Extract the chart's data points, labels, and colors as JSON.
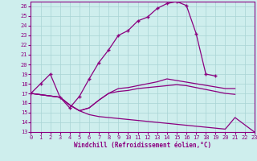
{
  "xlabel": "Windchill (Refroidissement éolien,°C)",
  "bg_color": "#ceeeed",
  "grid_color": "#a8d4d4",
  "line_color": "#8b0080",
  "xlim": [
    0,
    23
  ],
  "ylim": [
    13,
    26.5
  ],
  "xticks": [
    0,
    1,
    2,
    3,
    4,
    5,
    6,
    7,
    8,
    9,
    10,
    11,
    12,
    13,
    14,
    15,
    16,
    17,
    18,
    19,
    20,
    21,
    22,
    23
  ],
  "yticks": [
    13,
    14,
    15,
    16,
    17,
    18,
    19,
    20,
    21,
    22,
    23,
    24,
    25,
    26
  ],
  "curves": [
    {
      "x": [
        0,
        1,
        2,
        3,
        4,
        5,
        6,
        7,
        8,
        9,
        10,
        11,
        12,
        13,
        14,
        15,
        16,
        17,
        18,
        19
      ],
      "y": [
        17.0,
        18.0,
        19.0,
        16.6,
        15.5,
        16.7,
        18.5,
        20.2,
        21.5,
        23.0,
        23.5,
        24.5,
        24.9,
        25.8,
        26.3,
        26.5,
        26.1,
        23.2,
        19.0,
        18.8
      ],
      "has_markers": true
    },
    {
      "x": [
        0,
        3,
        4,
        5,
        6,
        7,
        8,
        9,
        10,
        11,
        12,
        13,
        14,
        20,
        21
      ],
      "y": [
        17.0,
        16.6,
        15.8,
        15.2,
        15.5,
        16.3,
        17.0,
        17.5,
        17.6,
        17.8,
        18.0,
        18.2,
        18.5,
        17.5,
        17.5
      ],
      "has_markers": false
    },
    {
      "x": [
        0,
        3,
        4,
        5,
        6,
        7,
        8,
        9,
        10,
        11,
        12,
        13,
        14,
        15,
        16,
        17,
        18,
        19,
        20,
        21
      ],
      "y": [
        17.0,
        16.6,
        15.8,
        15.2,
        15.5,
        16.3,
        17.0,
        17.2,
        17.3,
        17.5,
        17.6,
        17.7,
        17.8,
        17.9,
        17.8,
        17.6,
        17.4,
        17.2,
        17.0,
        16.9
      ],
      "has_markers": false
    },
    {
      "x": [
        0,
        3,
        4,
        5,
        6,
        7,
        8,
        9,
        10,
        11,
        12,
        13,
        14,
        15,
        16,
        17,
        18,
        19,
        20,
        21,
        23
      ],
      "y": [
        17.0,
        16.6,
        15.8,
        15.2,
        14.8,
        14.6,
        14.5,
        14.4,
        14.3,
        14.2,
        14.1,
        14.0,
        13.9,
        13.8,
        13.7,
        13.6,
        13.5,
        13.4,
        13.3,
        14.5,
        13.0
      ],
      "has_markers": false
    }
  ]
}
